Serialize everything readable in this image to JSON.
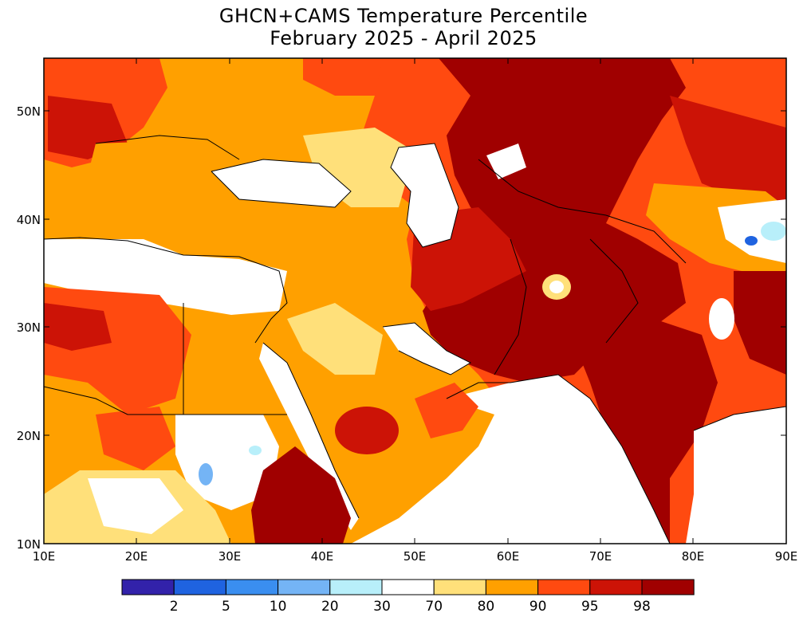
{
  "title": {
    "line1": "GHCN+CAMS Temperature Percentile",
    "line2": "February 2025 - April 2025"
  },
  "axes": {
    "lat_labels": [
      "50N",
      "40N",
      "30N",
      "20N",
      "10N"
    ],
    "lon_labels": [
      "10E",
      "20E",
      "30E",
      "40E",
      "50E",
      "60E",
      "70E",
      "80E",
      "90E"
    ]
  },
  "colorbar": {
    "colors": [
      "#3222aa",
      "#1f63e0",
      "#3a8ef0",
      "#74b4f5",
      "#b8effa",
      "#ffffff",
      "#ffe07a",
      "#ffa000",
      "#ff4a10",
      "#cc1306",
      "#a00000"
    ],
    "labels": [
      "2",
      "5",
      "10",
      "20",
      "30",
      "70",
      "80",
      "90",
      "95",
      "98"
    ]
  },
  "legend_colors": {
    "p90_95": "#ff4a10",
    "p80_90": "#ffa000",
    "p70_80": "#ffe07a",
    "p95_98": "#cc1306",
    "p98_up": "#a00000",
    "p30_70": "#ffffff",
    "p20_30": "#b8effa",
    "p10_20": "#74b4f5",
    "p5_10": "#3a8ef0"
  }
}
